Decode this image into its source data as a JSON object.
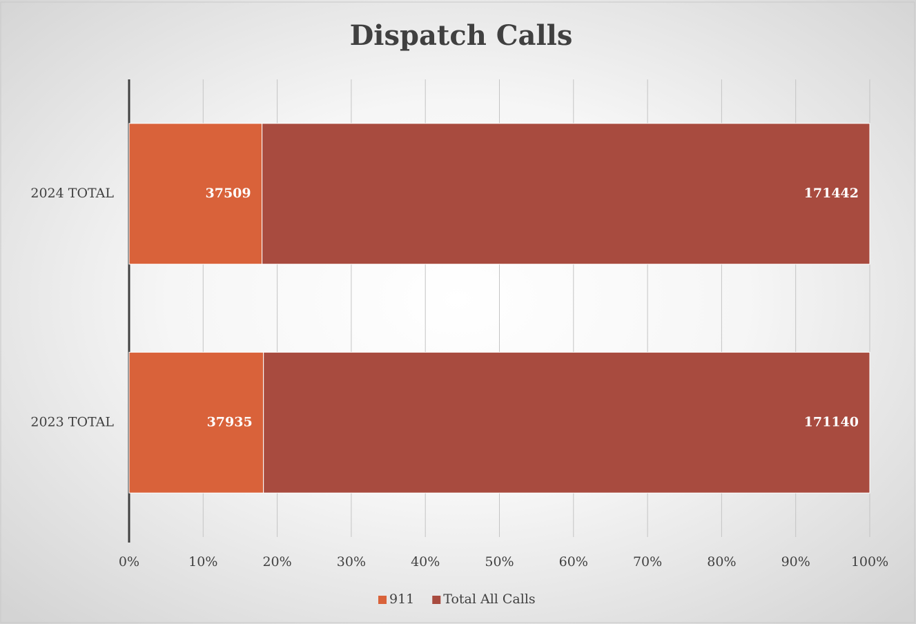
{
  "chart_data": {
    "type": "bar",
    "orientation": "horizontal",
    "stacking": "percent",
    "title": "Dispatch Calls",
    "categories": [
      "2024 TOTAL",
      "2023 TOTAL"
    ],
    "series": [
      {
        "name": "911",
        "color": "#d9623a",
        "values": [
          37509,
          37935
        ]
      },
      {
        "name": "Total All Calls",
        "color": "#a84b3f",
        "values": [
          171442,
          171140
        ]
      }
    ],
    "xlim": [
      0,
      100
    ],
    "xticks": [
      {
        "value": 0,
        "label": "0%"
      },
      {
        "value": 10,
        "label": "10%"
      },
      {
        "value": 20,
        "label": "20%"
      },
      {
        "value": 30,
        "label": "30%"
      },
      {
        "value": 40,
        "label": "40%"
      },
      {
        "value": 50,
        "label": "50%"
      },
      {
        "value": 60,
        "label": "60%"
      },
      {
        "value": 70,
        "label": "70%"
      },
      {
        "value": 80,
        "label": "80%"
      },
      {
        "value": 90,
        "label": "90%"
      },
      {
        "value": 100,
        "label": "100%"
      }
    ],
    "grid": true,
    "legend": "bottom"
  }
}
